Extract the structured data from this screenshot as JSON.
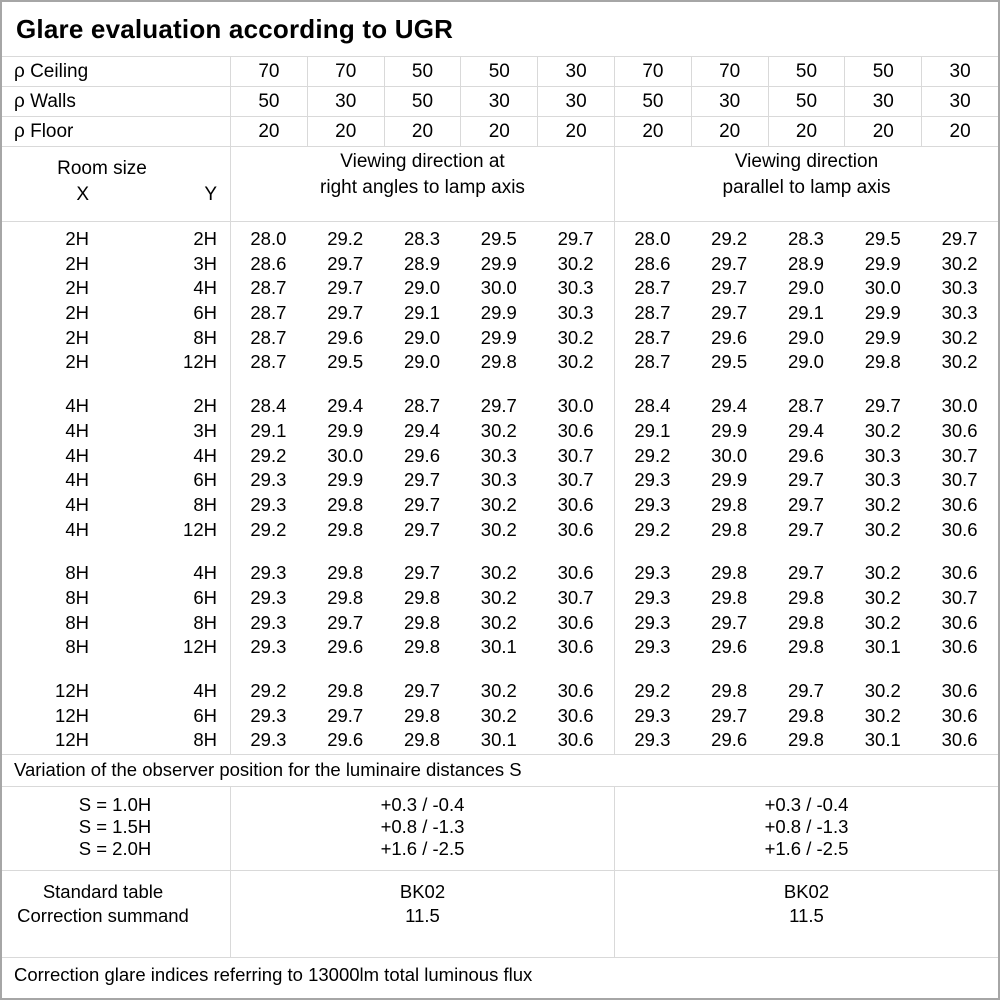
{
  "title": "Glare evaluation according to UGR",
  "reflectances": {
    "rows": [
      {
        "label": "ρ Ceiling",
        "values": [
          "70",
          "70",
          "50",
          "50",
          "30",
          "70",
          "70",
          "50",
          "50",
          "30"
        ]
      },
      {
        "label": "ρ Walls",
        "values": [
          "50",
          "30",
          "50",
          "30",
          "30",
          "50",
          "30",
          "50",
          "30",
          "30"
        ]
      },
      {
        "label": "ρ Floor",
        "values": [
          "20",
          "20",
          "20",
          "20",
          "20",
          "20",
          "20",
          "20",
          "20",
          "20"
        ]
      }
    ]
  },
  "header": {
    "room_size": "Room size",
    "x": "X",
    "y": "Y",
    "left_line1": "Viewing direction at",
    "left_line2": "right angles to lamp axis",
    "right_line1": "Viewing direction",
    "right_line2": "parallel to lamp axis"
  },
  "ugr_table": {
    "groups": [
      {
        "rows": [
          {
            "x": "2H",
            "y": "2H",
            "v": [
              "28.0",
              "29.2",
              "28.3",
              "29.5",
              "29.7",
              "28.0",
              "29.2",
              "28.3",
              "29.5",
              "29.7"
            ]
          },
          {
            "x": "2H",
            "y": "3H",
            "v": [
              "28.6",
              "29.7",
              "28.9",
              "29.9",
              "30.2",
              "28.6",
              "29.7",
              "28.9",
              "29.9",
              "30.2"
            ]
          },
          {
            "x": "2H",
            "y": "4H",
            "v": [
              "28.7",
              "29.7",
              "29.0",
              "30.0",
              "30.3",
              "28.7",
              "29.7",
              "29.0",
              "30.0",
              "30.3"
            ]
          },
          {
            "x": "2H",
            "y": "6H",
            "v": [
              "28.7",
              "29.7",
              "29.1",
              "29.9",
              "30.3",
              "28.7",
              "29.7",
              "29.1",
              "29.9",
              "30.3"
            ]
          },
          {
            "x": "2H",
            "y": "8H",
            "v": [
              "28.7",
              "29.6",
              "29.0",
              "29.9",
              "30.2",
              "28.7",
              "29.6",
              "29.0",
              "29.9",
              "30.2"
            ]
          },
          {
            "x": "2H",
            "y": "12H",
            "v": [
              "28.7",
              "29.5",
              "29.0",
              "29.8",
              "30.2",
              "28.7",
              "29.5",
              "29.0",
              "29.8",
              "30.2"
            ]
          }
        ]
      },
      {
        "rows": [
          {
            "x": "4H",
            "y": "2H",
            "v": [
              "28.4",
              "29.4",
              "28.7",
              "29.7",
              "30.0",
              "28.4",
              "29.4",
              "28.7",
              "29.7",
              "30.0"
            ]
          },
          {
            "x": "4H",
            "y": "3H",
            "v": [
              "29.1",
              "29.9",
              "29.4",
              "30.2",
              "30.6",
              "29.1",
              "29.9",
              "29.4",
              "30.2",
              "30.6"
            ]
          },
          {
            "x": "4H",
            "y": "4H",
            "v": [
              "29.2",
              "30.0",
              "29.6",
              "30.3",
              "30.7",
              "29.2",
              "30.0",
              "29.6",
              "30.3",
              "30.7"
            ]
          },
          {
            "x": "4H",
            "y": "6H",
            "v": [
              "29.3",
              "29.9",
              "29.7",
              "30.3",
              "30.7",
              "29.3",
              "29.9",
              "29.7",
              "30.3",
              "30.7"
            ]
          },
          {
            "x": "4H",
            "y": "8H",
            "v": [
              "29.3",
              "29.8",
              "29.7",
              "30.2",
              "30.6",
              "29.3",
              "29.8",
              "29.7",
              "30.2",
              "30.6"
            ]
          },
          {
            "x": "4H",
            "y": "12H",
            "v": [
              "29.2",
              "29.8",
              "29.7",
              "30.2",
              "30.6",
              "29.2",
              "29.8",
              "29.7",
              "30.2",
              "30.6"
            ]
          }
        ]
      },
      {
        "rows": [
          {
            "x": "8H",
            "y": "4H",
            "v": [
              "29.3",
              "29.8",
              "29.7",
              "30.2",
              "30.6",
              "29.3",
              "29.8",
              "29.7",
              "30.2",
              "30.6"
            ]
          },
          {
            "x": "8H",
            "y": "6H",
            "v": [
              "29.3",
              "29.8",
              "29.8",
              "30.2",
              "30.7",
              "29.3",
              "29.8",
              "29.8",
              "30.2",
              "30.7"
            ]
          },
          {
            "x": "8H",
            "y": "8H",
            "v": [
              "29.3",
              "29.7",
              "29.8",
              "30.2",
              "30.6",
              "29.3",
              "29.7",
              "29.8",
              "30.2",
              "30.6"
            ]
          },
          {
            "x": "8H",
            "y": "12H",
            "v": [
              "29.3",
              "29.6",
              "29.8",
              "30.1",
              "30.6",
              "29.3",
              "29.6",
              "29.8",
              "30.1",
              "30.6"
            ]
          }
        ]
      },
      {
        "rows": [
          {
            "x": "12H",
            "y": "4H",
            "v": [
              "29.2",
              "29.8",
              "29.7",
              "30.2",
              "30.6",
              "29.2",
              "29.8",
              "29.7",
              "30.2",
              "30.6"
            ]
          },
          {
            "x": "12H",
            "y": "6H",
            "v": [
              "29.3",
              "29.7",
              "29.8",
              "30.2",
              "30.6",
              "29.3",
              "29.7",
              "29.8",
              "30.2",
              "30.6"
            ]
          },
          {
            "x": "12H",
            "y": "8H",
            "v": [
              "29.3",
              "29.6",
              "29.8",
              "30.1",
              "30.6",
              "29.3",
              "29.6",
              "29.8",
              "30.1",
              "30.6"
            ]
          }
        ]
      }
    ]
  },
  "variation_note": "Variation of the observer position for the luminaire distances S",
  "s_block": {
    "labels": [
      "S = 1.0H",
      "S = 1.5H",
      "S = 2.0H"
    ],
    "left_values": [
      "+0.3 / -0.4",
      "+0.8 / -1.3",
      "+1.6 / -2.5"
    ],
    "right_values": [
      "+0.3 / -0.4",
      "+0.8 / -1.3",
      "+1.6 / -2.5"
    ]
  },
  "summary": {
    "labels": [
      "Standard table",
      "Correction summand"
    ],
    "left_values": [
      "BK02",
      "11.5"
    ],
    "right_values": [
      "BK02",
      "11.5"
    ]
  },
  "footer_note": "Correction glare indices referring to 13000lm total luminous flux"
}
